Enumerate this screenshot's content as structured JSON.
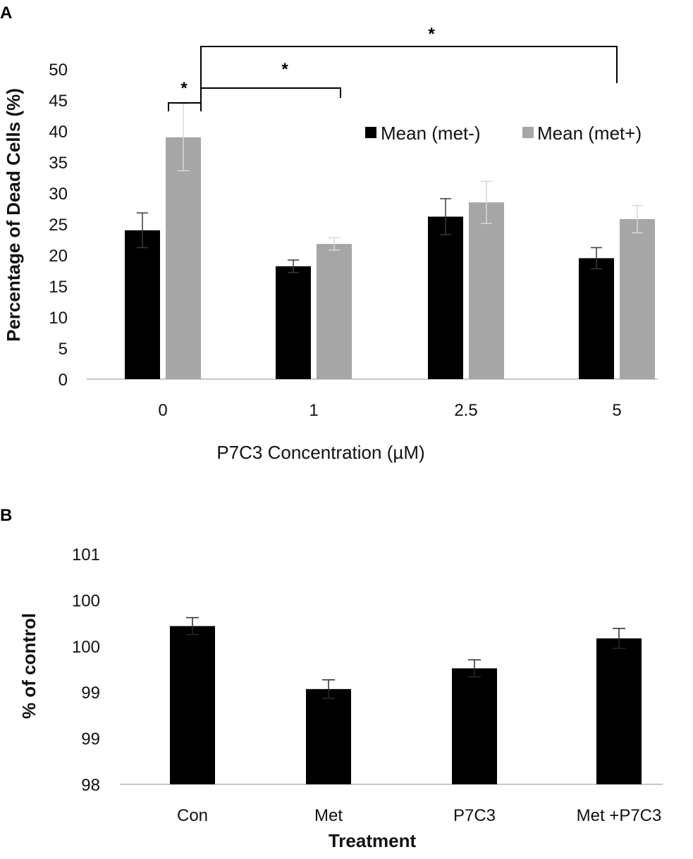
{
  "chart_data": [
    {
      "panel": "A",
      "type": "bar",
      "xlabel": "P7C3 Concentration (µM)",
      "ylabel": "Percentage of Dead Cells (%)",
      "ylim": [
        0,
        50
      ],
      "yticks": [
        "0",
        "5",
        "10",
        "15",
        "20",
        "25",
        "30",
        "35",
        "40",
        "45",
        "50"
      ],
      "categories": [
        "0",
        "1",
        "2.5",
        "5"
      ],
      "series": [
        {
          "name": "Mean (met-)",
          "color": "#000000",
          "values": [
            24,
            18.2,
            26.2,
            19.5
          ],
          "errors": [
            2.8,
            1.0,
            2.9,
            1.7
          ]
        },
        {
          "name": "Mean (met+)",
          "color": "#a6a6a6",
          "values": [
            39,
            21.8,
            28.5,
            25.8
          ],
          "errors": [
            5.4,
            1.0,
            3.4,
            2.2
          ]
        }
      ],
      "significance": [
        {
          "label": "*",
          "from": "0 (met-)",
          "to": "0 (met+)"
        },
        {
          "label": "*",
          "from": "0",
          "to": "1"
        },
        {
          "label": "*",
          "from": "0",
          "to": "5"
        }
      ],
      "legend": "top-right"
    },
    {
      "panel": "B",
      "type": "bar",
      "xlabel": "Treatment",
      "ylabel": "% of control",
      "ylim": [
        98,
        101
      ],
      "yticks": [
        "98",
        "99",
        "99",
        "100",
        "100",
        "101"
      ],
      "categories": [
        "Con",
        "Met",
        "P7C3",
        "Met +P7C3"
      ],
      "series": [
        {
          "name": "% of control",
          "color": "#000000",
          "values": [
            100.06,
            99.24,
            99.51,
            99.9
          ],
          "errors": [
            0.11,
            0.12,
            0.11,
            0.13
          ]
        }
      ]
    }
  ]
}
